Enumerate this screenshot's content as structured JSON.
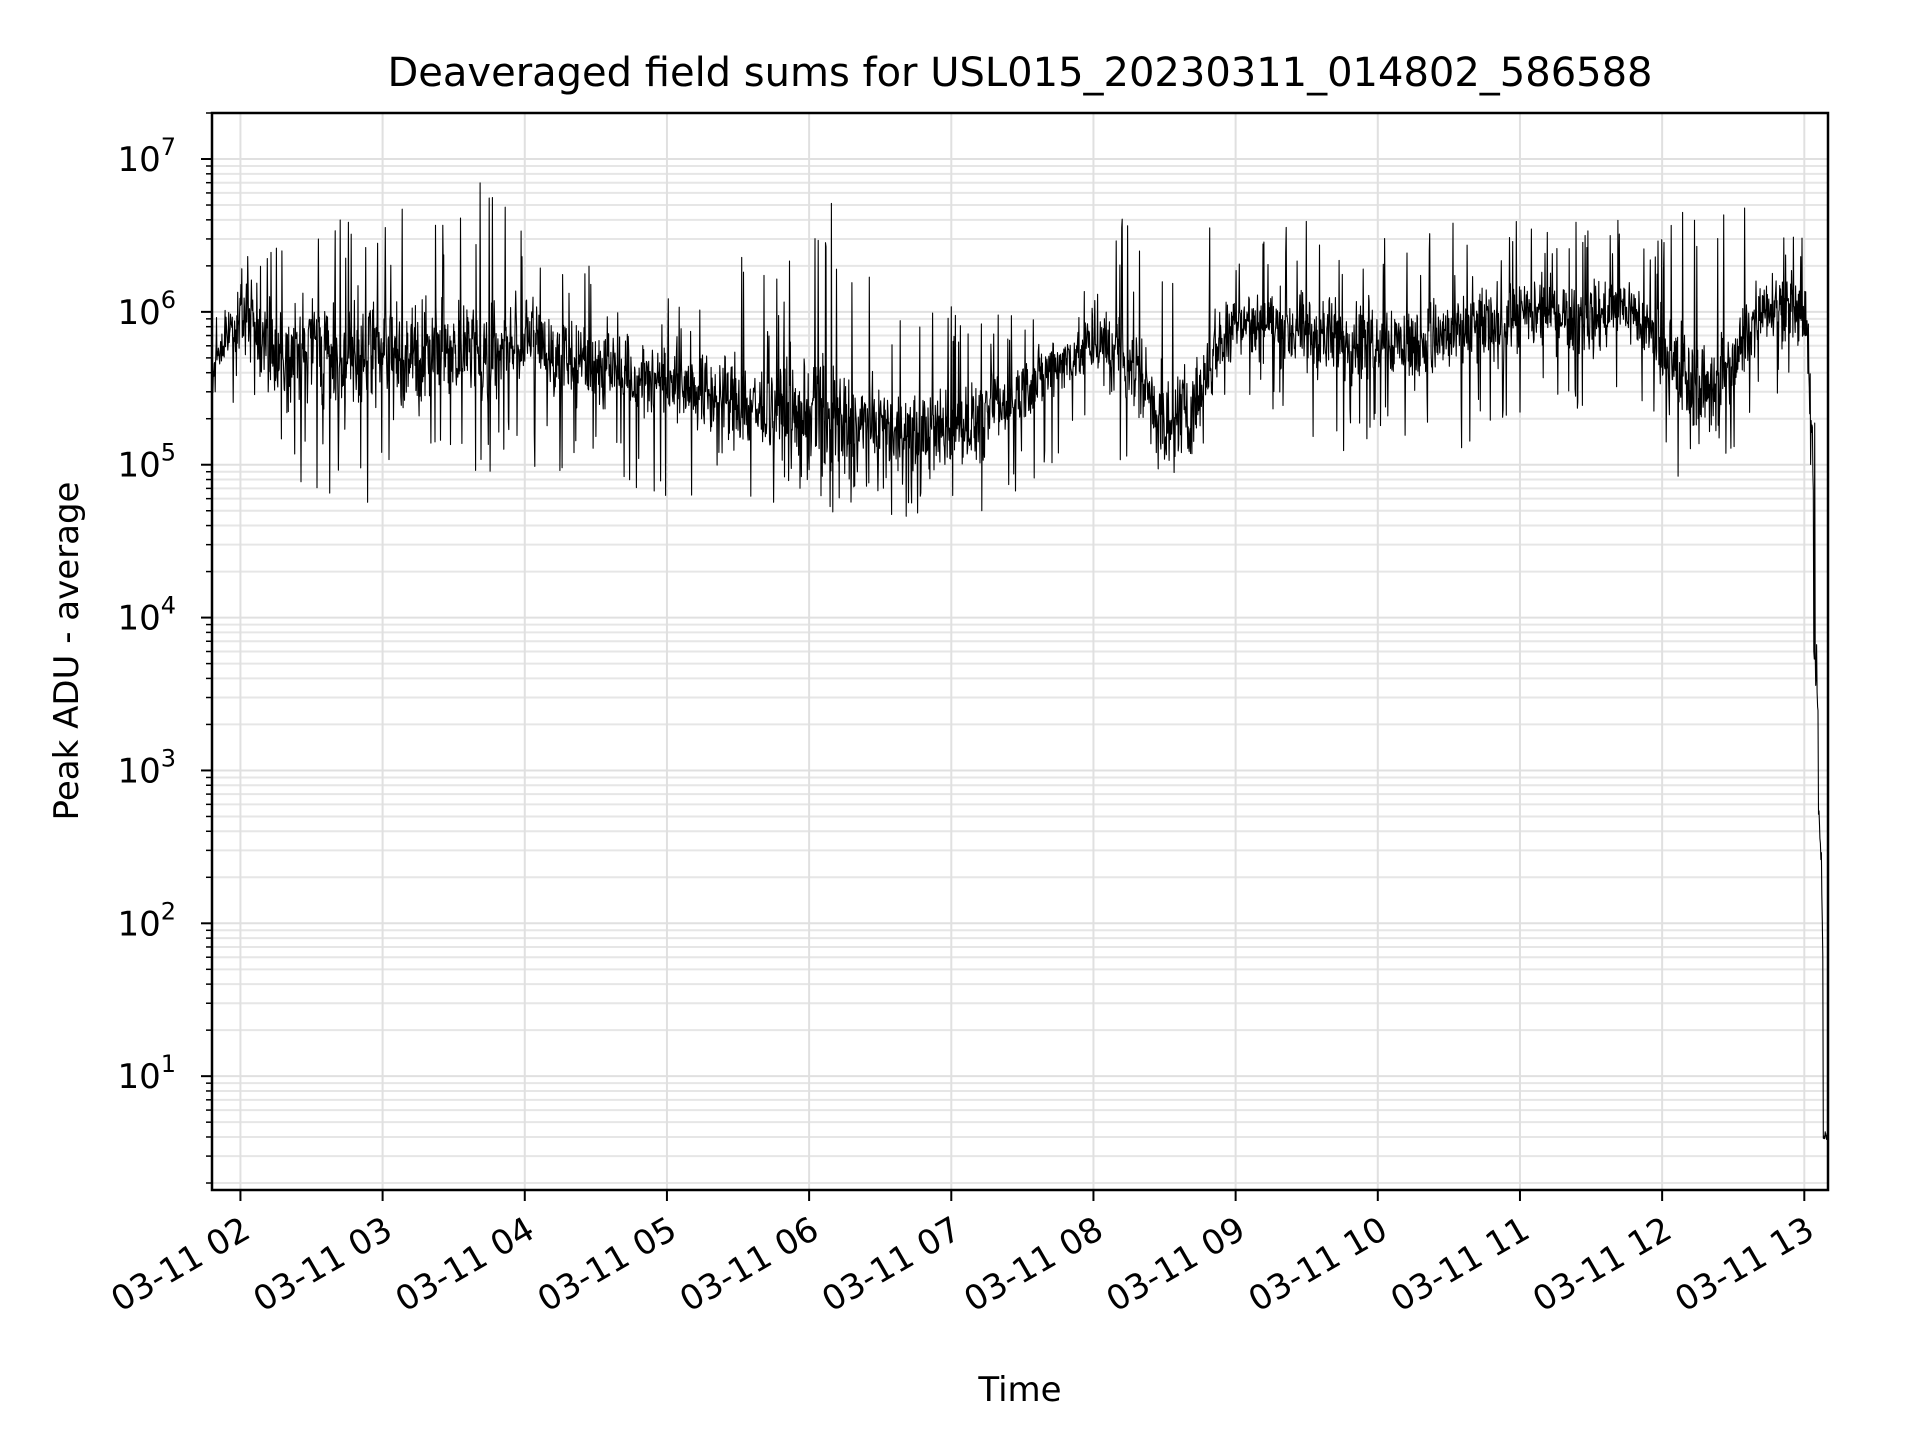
{
  "chart_data": {
    "type": "line",
    "title": "Deaveraged field sums for USL015_20230311_014802_586588",
    "xlabel": "Time",
    "ylabel": "Peak ADU - average",
    "yscale": "log",
    "ylim": [
      1.8,
      20000000
    ],
    "xlim": [
      "03-11 01:48",
      "03-11 13:10"
    ],
    "grid": true,
    "line_color": "#000000",
    "x_ticks": [
      {
        "t": "03-11 02:00",
        "label": "03-11 02"
      },
      {
        "t": "03-11 03:00",
        "label": "03-11 03"
      },
      {
        "t": "03-11 04:00",
        "label": "03-11 04"
      },
      {
        "t": "03-11 05:00",
        "label": "03-11 05"
      },
      {
        "t": "03-11 06:00",
        "label": "03-11 06"
      },
      {
        "t": "03-11 07:00",
        "label": "03-11 07"
      },
      {
        "t": "03-11 08:00",
        "label": "03-11 08"
      },
      {
        "t": "03-11 09:00",
        "label": "03-11 09"
      },
      {
        "t": "03-11 10:00",
        "label": "03-11 10"
      },
      {
        "t": "03-11 11:00",
        "label": "03-11 11"
      },
      {
        "t": "03-11 12:00",
        "label": "03-11 12"
      },
      {
        "t": "03-11 13:00",
        "label": "03-11 13"
      }
    ],
    "y_ticks": [
      {
        "value": 10,
        "base": "10",
        "exp": "1"
      },
      {
        "value": 100,
        "base": "10",
        "exp": "2"
      },
      {
        "value": 1000,
        "base": "10",
        "exp": "3"
      },
      {
        "value": 10000,
        "base": "10",
        "exp": "4"
      },
      {
        "value": 100000,
        "base": "10",
        "exp": "5"
      },
      {
        "value": 1000000,
        "base": "10",
        "exp": "6"
      },
      {
        "value": 10000000,
        "base": "10",
        "exp": "7"
      }
    ],
    "series": [
      {
        "x": [
          "03-11 01:48",
          "03-11 02:00",
          "03-11 02:15",
          "03-11 02:30",
          "03-11 02:45",
          "03-11 03:00",
          "03-11 03:15",
          "03-11 03:30",
          "03-11 03:45",
          "03-11 04:00",
          "03-11 04:15",
          "03-11 04:30",
          "03-11 04:45",
          "03-11 05:00",
          "03-11 05:15",
          "03-11 05:30",
          "03-11 05:45",
          "03-11 06:00",
          "03-11 06:15",
          "03-11 06:30",
          "03-11 06:45",
          "03-11 07:00",
          "03-11 07:15",
          "03-11 07:30",
          "03-11 07:45",
          "03-11 08:00",
          "03-11 08:15",
          "03-11 08:30",
          "03-11 08:45",
          "03-11 09:00",
          "03-11 09:15",
          "03-11 09:30",
          "03-11 09:45",
          "03-11 10:00",
          "03-11 10:15",
          "03-11 10:30",
          "03-11 10:45",
          "03-11 11:00",
          "03-11 11:15",
          "03-11 11:30",
          "03-11 11:45",
          "03-11 12:00",
          "03-11 12:15",
          "03-11 12:30",
          "03-11 12:45",
          "03-11 13:00",
          "03-11 13:04",
          "03-11 13:06",
          "03-11 13:08",
          "03-11 13:10"
        ],
        "y": [
          400000,
          1000000,
          500000,
          600000,
          450000,
          550000,
          500000,
          600000,
          500000,
          700000,
          500000,
          450000,
          400000,
          350000,
          300000,
          250000,
          220000,
          200000,
          180000,
          170000,
          160000,
          170000,
          200000,
          300000,
          450000,
          600000,
          500000,
          150000,
          300000,
          900000,
          800000,
          700000,
          650000,
          700000,
          600000,
          700000,
          800000,
          900000,
          1000000,
          900000,
          1100000,
          500000,
          300000,
          400000,
          1200000,
          900000,
          9000,
          550,
          4,
          4
        ],
        "envelope_min": [
          300000,
          200000,
          80000,
          70000,
          60000,
          50000,
          70000,
          80000,
          90000,
          100000,
          90000,
          80000,
          70000,
          60000,
          55000,
          50000,
          48000,
          46000,
          45000,
          45000,
          44000,
          45000,
          50000,
          70000,
          100000,
          120000,
          90000,
          50000,
          100000,
          250000,
          200000,
          150000,
          120000,
          150000,
          130000,
          100000,
          150000,
          200000,
          250000,
          200000,
          300000,
          70000,
          100000,
          120000,
          250000,
          200000,
          4500,
          400,
          3.5,
          3.5
        ],
        "envelope_max": [
          700000,
          3500000,
          4000000,
          4500000,
          5000000,
          4500000,
          5500000,
          3500000,
          9500000,
          3000000,
          2500000,
          2000000,
          1500000,
          1300000,
          1200000,
          3500000,
          1100000,
          7500000,
          5000000,
          1500000,
          1200000,
          1100000,
          1100000,
          1000000,
          1200000,
          1500000,
          5500000,
          2000000,
          5500000,
          3000000,
          3500000,
          4000000,
          3000000,
          3500000,
          3200000,
          4000000,
          3800000,
          4200000,
          3800000,
          4000000,
          4000000,
          3500000,
          6000000,
          6500000,
          4500000,
          3000000,
          300000,
          1400,
          5,
          5
        ]
      }
    ]
  }
}
